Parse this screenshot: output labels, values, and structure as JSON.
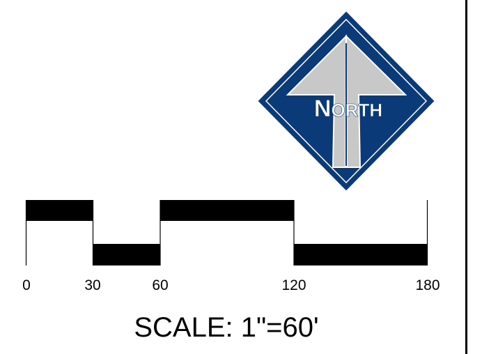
{
  "north_arrow": {
    "label": "North",
    "label_initial": "N",
    "label_rest": "ORTH",
    "colors": {
      "diamond_fill": "#0a3b78",
      "arrow_fill": "#c8c8c8",
      "outline": "#ffffff",
      "label": "#ffffff"
    }
  },
  "scale_bar": {
    "ticks": [
      "0",
      "30",
      "60",
      "120",
      "180"
    ],
    "caption": "SCALE: 1\"=60'",
    "colors": {
      "bar": "#000000"
    }
  }
}
